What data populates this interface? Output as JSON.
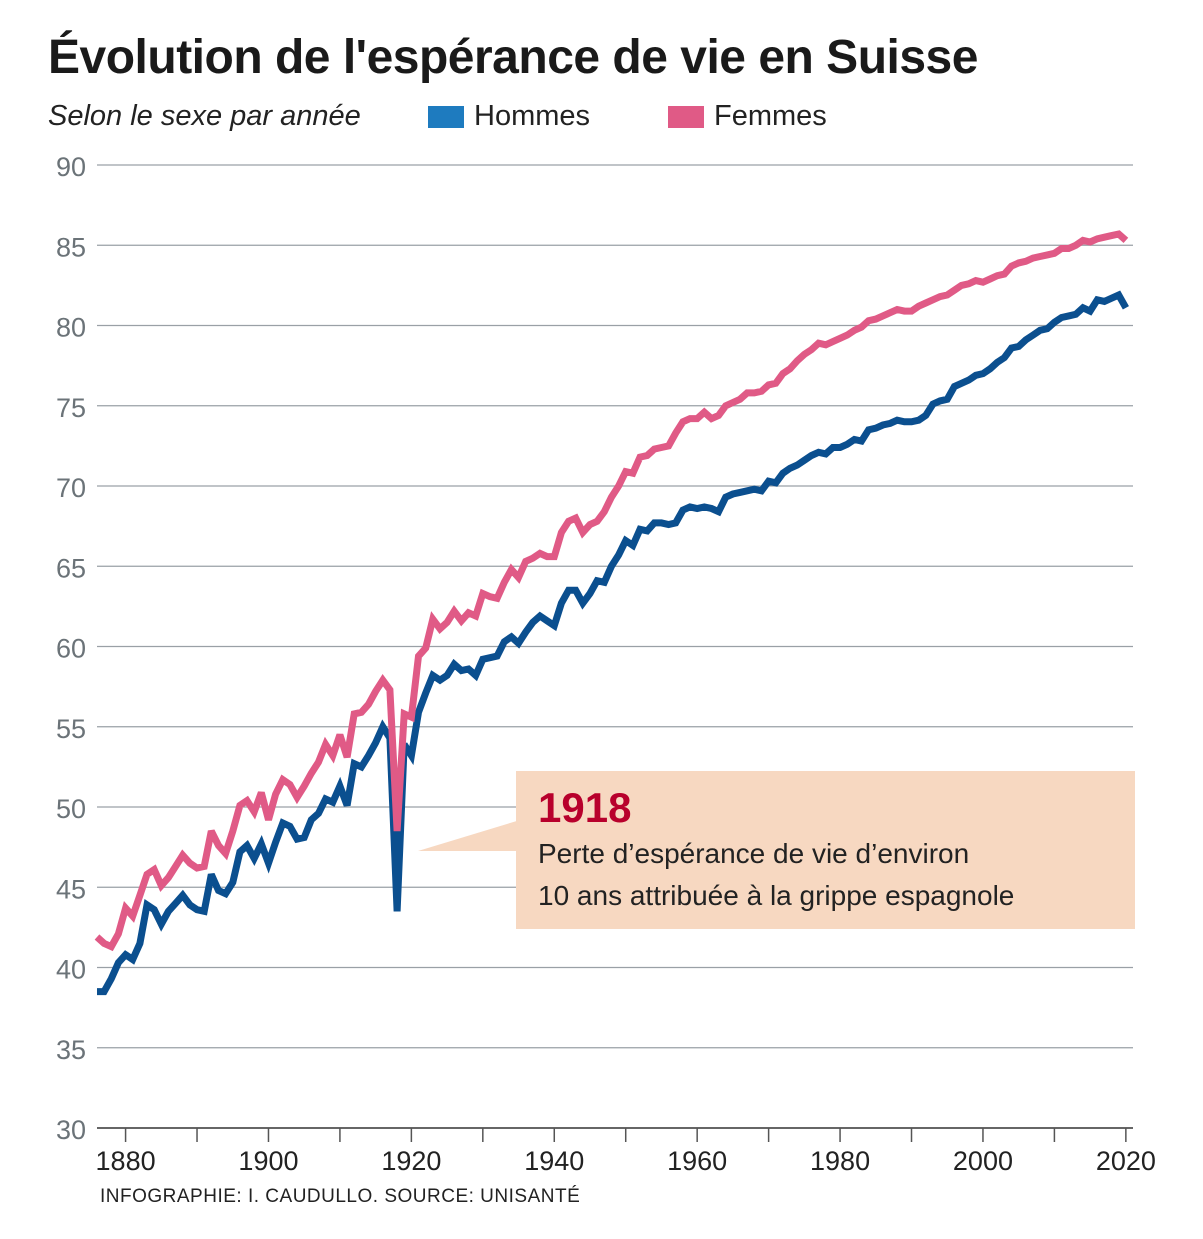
{
  "header": {
    "title": "Évolution de l'espérance de vie en Suisse",
    "subtitle": "Selon le sexe par année"
  },
  "legend": [
    {
      "label": "Hommes",
      "color": "#1e7bbf"
    },
    {
      "label": "Femmes",
      "color": "#e05a86"
    }
  ],
  "annotation": {
    "year": "1918",
    "line1": "Perte d’espérance de vie d’environ",
    "line2": "10 ans attribuée à la grippe espagnole"
  },
  "source": "INFOGRAPHIE: I. CAUDULLO. SOURCE: UNISANTÉ",
  "chart_data": {
    "type": "line",
    "title": "Évolution de l'espérance de vie en Suisse",
    "subtitle": "Selon le sexe par année",
    "xlabel": "",
    "ylabel": "",
    "xlim": [
      1876,
      2021
    ],
    "ylim": [
      30,
      90
    ],
    "yticks": [
      30,
      35,
      40,
      45,
      50,
      55,
      60,
      65,
      70,
      75,
      80,
      85,
      90
    ],
    "xticks": [
      1880,
      1900,
      1920,
      1940,
      1960,
      1980,
      2000,
      2020
    ],
    "grid": true,
    "legend_position": "top",
    "series": [
      {
        "name": "Hommes",
        "color": "#0b4f8f",
        "points": [
          [
            1876,
            38.5
          ],
          [
            1877,
            38.5
          ],
          [
            1878,
            39.3
          ],
          [
            1879,
            40.3
          ],
          [
            1880,
            40.8
          ],
          [
            1881,
            40.5
          ],
          [
            1882,
            41.5
          ],
          [
            1883,
            43.9
          ],
          [
            1884,
            43.6
          ],
          [
            1885,
            42.7
          ],
          [
            1886,
            43.5
          ],
          [
            1887,
            44.0
          ],
          [
            1888,
            44.5
          ],
          [
            1889,
            43.9
          ],
          [
            1890,
            43.6
          ],
          [
            1891,
            43.5
          ],
          [
            1892,
            45.8
          ],
          [
            1893,
            44.8
          ],
          [
            1894,
            44.6
          ],
          [
            1895,
            45.3
          ],
          [
            1896,
            47.2
          ],
          [
            1897,
            47.6
          ],
          [
            1898,
            46.8
          ],
          [
            1899,
            47.7
          ],
          [
            1900,
            46.5
          ],
          [
            1901,
            47.8
          ],
          [
            1902,
            49.0
          ],
          [
            1903,
            48.8
          ],
          [
            1904,
            48.0
          ],
          [
            1905,
            48.1
          ],
          [
            1906,
            49.2
          ],
          [
            1907,
            49.6
          ],
          [
            1908,
            50.5
          ],
          [
            1909,
            50.3
          ],
          [
            1910,
            51.3
          ],
          [
            1911,
            50.1
          ],
          [
            1912,
            52.7
          ],
          [
            1913,
            52.5
          ],
          [
            1914,
            53.2
          ],
          [
            1915,
            54.0
          ],
          [
            1916,
            55.0
          ],
          [
            1917,
            54.3
          ],
          [
            1918,
            43.5
          ],
          [
            1919,
            53.9
          ],
          [
            1920,
            53.2
          ],
          [
            1921,
            55.9
          ],
          [
            1922,
            57.1
          ],
          [
            1923,
            58.2
          ],
          [
            1924,
            57.9
          ],
          [
            1925,
            58.2
          ],
          [
            1926,
            58.9
          ],
          [
            1927,
            58.5
          ],
          [
            1928,
            58.6
          ],
          [
            1929,
            58.2
          ],
          [
            1930,
            59.2
          ],
          [
            1931,
            59.3
          ],
          [
            1932,
            59.4
          ],
          [
            1933,
            60.3
          ],
          [
            1934,
            60.6
          ],
          [
            1935,
            60.2
          ],
          [
            1936,
            60.9
          ],
          [
            1937,
            61.5
          ],
          [
            1938,
            61.9
          ],
          [
            1939,
            61.6
          ],
          [
            1940,
            61.3
          ],
          [
            1941,
            62.7
          ],
          [
            1942,
            63.5
          ],
          [
            1943,
            63.5
          ],
          [
            1944,
            62.7
          ],
          [
            1945,
            63.3
          ],
          [
            1946,
            64.1
          ],
          [
            1947,
            64.0
          ],
          [
            1948,
            65.0
          ],
          [
            1949,
            65.7
          ],
          [
            1950,
            66.6
          ],
          [
            1951,
            66.3
          ],
          [
            1952,
            67.3
          ],
          [
            1953,
            67.2
          ],
          [
            1954,
            67.7
          ],
          [
            1955,
            67.7
          ],
          [
            1956,
            67.6
          ],
          [
            1957,
            67.7
          ],
          [
            1958,
            68.5
          ],
          [
            1959,
            68.7
          ],
          [
            1960,
            68.6
          ],
          [
            1961,
            68.7
          ],
          [
            1962,
            68.6
          ],
          [
            1963,
            68.4
          ],
          [
            1964,
            69.3
          ],
          [
            1965,
            69.5
          ],
          [
            1966,
            69.6
          ],
          [
            1967,
            69.7
          ],
          [
            1968,
            69.8
          ],
          [
            1969,
            69.7
          ],
          [
            1970,
            70.3
          ],
          [
            1971,
            70.2
          ],
          [
            1972,
            70.8
          ],
          [
            1973,
            71.1
          ],
          [
            1974,
            71.3
          ],
          [
            1975,
            71.6
          ],
          [
            1976,
            71.9
          ],
          [
            1977,
            72.1
          ],
          [
            1978,
            72.0
          ],
          [
            1979,
            72.4
          ],
          [
            1980,
            72.4
          ],
          [
            1981,
            72.6
          ],
          [
            1982,
            72.9
          ],
          [
            1983,
            72.8
          ],
          [
            1984,
            73.5
          ],
          [
            1985,
            73.6
          ],
          [
            1986,
            73.8
          ],
          [
            1987,
            73.9
          ],
          [
            1988,
            74.1
          ],
          [
            1989,
            74.0
          ],
          [
            1990,
            74.0
          ],
          [
            1991,
            74.1
          ],
          [
            1992,
            74.4
          ],
          [
            1993,
            75.1
          ],
          [
            1994,
            75.3
          ],
          [
            1995,
            75.4
          ],
          [
            1996,
            76.2
          ],
          [
            1997,
            76.4
          ],
          [
            1998,
            76.6
          ],
          [
            1999,
            76.9
          ],
          [
            2000,
            77.0
          ],
          [
            2001,
            77.3
          ],
          [
            2002,
            77.7
          ],
          [
            2003,
            78.0
          ],
          [
            2004,
            78.6
          ],
          [
            2005,
            78.7
          ],
          [
            2006,
            79.1
          ],
          [
            2007,
            79.4
          ],
          [
            2008,
            79.7
          ],
          [
            2009,
            79.8
          ],
          [
            2010,
            80.2
          ],
          [
            2011,
            80.5
          ],
          [
            2012,
            80.6
          ],
          [
            2013,
            80.7
          ],
          [
            2014,
            81.1
          ],
          [
            2015,
            80.9
          ],
          [
            2016,
            81.6
          ],
          [
            2017,
            81.5
          ],
          [
            2018,
            81.7
          ],
          [
            2019,
            81.9
          ],
          [
            2020,
            81.1
          ]
        ]
      },
      {
        "name": "Femmes",
        "color": "#e05a86",
        "points": [
          [
            1876,
            41.9
          ],
          [
            1877,
            41.5
          ],
          [
            1878,
            41.3
          ],
          [
            1879,
            42.1
          ],
          [
            1880,
            43.7
          ],
          [
            1881,
            43.2
          ],
          [
            1882,
            44.5
          ],
          [
            1883,
            45.8
          ],
          [
            1884,
            46.1
          ],
          [
            1885,
            45.1
          ],
          [
            1886,
            45.6
          ],
          [
            1887,
            46.3
          ],
          [
            1888,
            47.0
          ],
          [
            1889,
            46.5
          ],
          [
            1890,
            46.2
          ],
          [
            1891,
            46.3
          ],
          [
            1892,
            48.5
          ],
          [
            1893,
            47.6
          ],
          [
            1894,
            47.1
          ],
          [
            1895,
            48.5
          ],
          [
            1896,
            50.1
          ],
          [
            1897,
            50.4
          ],
          [
            1898,
            49.7
          ],
          [
            1899,
            50.9
          ],
          [
            1900,
            49.2
          ],
          [
            1901,
            50.8
          ],
          [
            1902,
            51.7
          ],
          [
            1903,
            51.4
          ],
          [
            1904,
            50.6
          ],
          [
            1905,
            51.3
          ],
          [
            1906,
            52.1
          ],
          [
            1907,
            52.8
          ],
          [
            1908,
            53.9
          ],
          [
            1909,
            53.2
          ],
          [
            1910,
            54.5
          ],
          [
            1911,
            53.1
          ],
          [
            1912,
            55.8
          ],
          [
            1913,
            55.9
          ],
          [
            1914,
            56.4
          ],
          [
            1915,
            57.2
          ],
          [
            1916,
            57.9
          ],
          [
            1917,
            57.3
          ],
          [
            1918,
            48.5
          ],
          [
            1919,
            55.8
          ],
          [
            1920,
            55.6
          ],
          [
            1921,
            59.4
          ],
          [
            1922,
            59.9
          ],
          [
            1923,
            61.7
          ],
          [
            1924,
            61.1
          ],
          [
            1925,
            61.5
          ],
          [
            1926,
            62.2
          ],
          [
            1927,
            61.6
          ],
          [
            1928,
            62.1
          ],
          [
            1929,
            61.9
          ],
          [
            1930,
            63.3
          ],
          [
            1931,
            63.1
          ],
          [
            1932,
            63.0
          ],
          [
            1933,
            64.0
          ],
          [
            1934,
            64.8
          ],
          [
            1935,
            64.3
          ],
          [
            1936,
            65.3
          ],
          [
            1937,
            65.5
          ],
          [
            1938,
            65.8
          ],
          [
            1939,
            65.6
          ],
          [
            1940,
            65.6
          ],
          [
            1941,
            67.1
          ],
          [
            1942,
            67.8
          ],
          [
            1943,
            68.0
          ],
          [
            1944,
            67.1
          ],
          [
            1945,
            67.6
          ],
          [
            1946,
            67.8
          ],
          [
            1947,
            68.4
          ],
          [
            1948,
            69.3
          ],
          [
            1949,
            70.0
          ],
          [
            1950,
            70.9
          ],
          [
            1951,
            70.8
          ],
          [
            1952,
            71.8
          ],
          [
            1953,
            71.9
          ],
          [
            1954,
            72.3
          ],
          [
            1955,
            72.4
          ],
          [
            1956,
            72.5
          ],
          [
            1957,
            73.3
          ],
          [
            1958,
            74.0
          ],
          [
            1959,
            74.2
          ],
          [
            1960,
            74.2
          ],
          [
            1961,
            74.6
          ],
          [
            1962,
            74.2
          ],
          [
            1963,
            74.4
          ],
          [
            1964,
            75.0
          ],
          [
            1965,
            75.2
          ],
          [
            1966,
            75.4
          ],
          [
            1967,
            75.8
          ],
          [
            1968,
            75.8
          ],
          [
            1969,
            75.9
          ],
          [
            1970,
            76.3
          ],
          [
            1971,
            76.4
          ],
          [
            1972,
            77.0
          ],
          [
            1973,
            77.3
          ],
          [
            1974,
            77.8
          ],
          [
            1975,
            78.2
          ],
          [
            1976,
            78.5
          ],
          [
            1977,
            78.9
          ],
          [
            1978,
            78.8
          ],
          [
            1979,
            79.0
          ],
          [
            1980,
            79.2
          ],
          [
            1981,
            79.4
          ],
          [
            1982,
            79.7
          ],
          [
            1983,
            79.9
          ],
          [
            1984,
            80.3
          ],
          [
            1985,
            80.4
          ],
          [
            1986,
            80.6
          ],
          [
            1987,
            80.8
          ],
          [
            1988,
            81.0
          ],
          [
            1989,
            80.9
          ],
          [
            1990,
            80.9
          ],
          [
            1991,
            81.2
          ],
          [
            1992,
            81.4
          ],
          [
            1993,
            81.6
          ],
          [
            1994,
            81.8
          ],
          [
            1995,
            81.9
          ],
          [
            1996,
            82.2
          ],
          [
            1997,
            82.5
          ],
          [
            1998,
            82.6
          ],
          [
            1999,
            82.8
          ],
          [
            2000,
            82.7
          ],
          [
            2001,
            82.9
          ],
          [
            2002,
            83.1
          ],
          [
            2003,
            83.2
          ],
          [
            2004,
            83.7
          ],
          [
            2005,
            83.9
          ],
          [
            2006,
            84.0
          ],
          [
            2007,
            84.2
          ],
          [
            2008,
            84.3
          ],
          [
            2009,
            84.4
          ],
          [
            2010,
            84.5
          ],
          [
            2011,
            84.8
          ],
          [
            2012,
            84.8
          ],
          [
            2013,
            85.0
          ],
          [
            2014,
            85.3
          ],
          [
            2015,
            85.2
          ],
          [
            2016,
            85.4
          ],
          [
            2017,
            85.5
          ],
          [
            2018,
            85.6
          ],
          [
            2019,
            85.7
          ],
          [
            2020,
            85.3
          ]
        ]
      }
    ]
  }
}
